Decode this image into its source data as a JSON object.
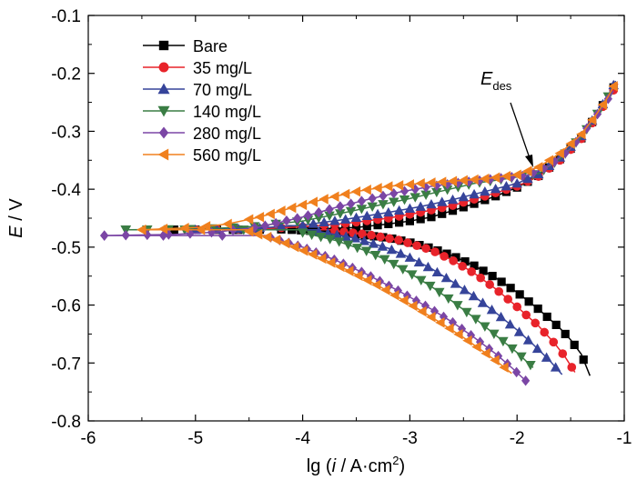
{
  "chart_data": {
    "type": "line",
    "xlabel": {
      "prefix": "lg (",
      "italic": "i",
      "mid": " / A·cm",
      "sup": "2",
      "suffix": ")"
    },
    "ylabel": {
      "italic": "E",
      "suffix": " / V"
    },
    "xlim": [
      -6,
      -1
    ],
    "ylim": [
      -0.8,
      -0.1
    ],
    "x_ticks": [
      "-6",
      "-5",
      "-4",
      "-3",
      "-2",
      "-1"
    ],
    "y_ticks": [
      "-0.8",
      "-0.7",
      "-0.6",
      "-0.5",
      "-0.4",
      "-0.3",
      "-0.2",
      "-0.1"
    ],
    "annotation": {
      "text_italic": "E",
      "sub": "des",
      "x": -1.78,
      "y": -0.373
    },
    "series": [
      {
        "name": "Bare",
        "color": "#000000",
        "marker": "square",
        "ecorr": -0.47,
        "x_left": -5.2,
        "x_cross": -4.1,
        "anodic": [
          [
            -5.2,
            -0.47
          ],
          [
            -4.5,
            -0.47
          ],
          [
            -4.1,
            -0.469
          ],
          [
            -3.8,
            -0.468
          ],
          [
            -3.5,
            -0.466
          ],
          [
            -3.2,
            -0.46
          ],
          [
            -3.0,
            -0.455
          ],
          [
            -2.8,
            -0.448
          ],
          [
            -2.6,
            -0.437
          ],
          [
            -2.4,
            -0.425
          ],
          [
            -2.2,
            -0.412
          ],
          [
            -2.0,
            -0.397
          ],
          [
            -1.8,
            -0.377
          ],
          [
            -1.6,
            -0.348
          ],
          [
            -1.4,
            -0.312
          ],
          [
            -1.25,
            -0.27
          ],
          [
            -1.15,
            -0.24
          ],
          [
            -1.08,
            -0.218
          ]
        ],
        "cathodic": [
          [
            -4.1,
            -0.47
          ],
          [
            -3.8,
            -0.473
          ],
          [
            -3.5,
            -0.478
          ],
          [
            -3.2,
            -0.484
          ],
          [
            -3.0,
            -0.492
          ],
          [
            -2.8,
            -0.502
          ],
          [
            -2.6,
            -0.515
          ],
          [
            -2.4,
            -0.532
          ],
          [
            -2.2,
            -0.553
          ],
          [
            -2.0,
            -0.578
          ],
          [
            -1.8,
            -0.607
          ],
          [
            -1.6,
            -0.64
          ],
          [
            -1.5,
            -0.66
          ],
          [
            -1.4,
            -0.685
          ],
          [
            -1.32,
            -0.722
          ]
        ]
      },
      {
        "name": "35 mg/L",
        "color": "#e8232a",
        "marker": "circle",
        "ecorr": -0.47,
        "x_left": -5.0,
        "x_cross": -3.7,
        "anodic": [
          [
            -5.0,
            -0.47
          ],
          [
            -4.5,
            -0.469
          ],
          [
            -4.0,
            -0.465
          ],
          [
            -3.6,
            -0.459
          ],
          [
            -3.2,
            -0.45
          ],
          [
            -2.9,
            -0.44
          ],
          [
            -2.6,
            -0.428
          ],
          [
            -2.3,
            -0.412
          ],
          [
            -2.0,
            -0.395
          ],
          [
            -1.8,
            -0.378
          ],
          [
            -1.6,
            -0.35
          ],
          [
            -1.4,
            -0.313
          ],
          [
            -1.25,
            -0.272
          ],
          [
            -1.15,
            -0.243
          ],
          [
            -1.06,
            -0.218
          ]
        ],
        "cathodic": [
          [
            -3.7,
            -0.472
          ],
          [
            -3.4,
            -0.478
          ],
          [
            -3.1,
            -0.488
          ],
          [
            -2.8,
            -0.505
          ],
          [
            -2.6,
            -0.523
          ],
          [
            -2.4,
            -0.545
          ],
          [
            -2.2,
            -0.572
          ],
          [
            -2.0,
            -0.603
          ],
          [
            -1.8,
            -0.636
          ],
          [
            -1.65,
            -0.666
          ],
          [
            -1.55,
            -0.69
          ],
          [
            -1.46,
            -0.716
          ]
        ]
      },
      {
        "name": "70 mg/L",
        "color": "#36449a",
        "marker": "triangle-up",
        "ecorr": -0.47,
        "x_left": -5.0,
        "x_cross": -3.85,
        "anodic": [
          [
            -5.0,
            -0.47
          ],
          [
            -4.5,
            -0.468
          ],
          [
            -4.0,
            -0.462
          ],
          [
            -3.6,
            -0.452
          ],
          [
            -3.2,
            -0.44
          ],
          [
            -2.9,
            -0.43
          ],
          [
            -2.6,
            -0.418
          ],
          [
            -2.3,
            -0.404
          ],
          [
            -2.0,
            -0.39
          ],
          [
            -1.8,
            -0.374
          ],
          [
            -1.6,
            -0.345
          ],
          [
            -1.4,
            -0.308
          ],
          [
            -1.25,
            -0.268
          ],
          [
            -1.15,
            -0.238
          ],
          [
            -1.08,
            -0.213
          ]
        ],
        "cathodic": [
          [
            -3.85,
            -0.473
          ],
          [
            -3.5,
            -0.485
          ],
          [
            -3.2,
            -0.502
          ],
          [
            -3.0,
            -0.518
          ],
          [
            -2.8,
            -0.537
          ],
          [
            -2.6,
            -0.56
          ],
          [
            -2.4,
            -0.585
          ],
          [
            -2.2,
            -0.613
          ],
          [
            -2.0,
            -0.643
          ],
          [
            -1.85,
            -0.668
          ],
          [
            -1.7,
            -0.695
          ],
          [
            -1.58,
            -0.72
          ]
        ]
      },
      {
        "name": "140 mg/L",
        "color": "#3a7d44",
        "marker": "triangle-down",
        "ecorr": -0.47,
        "x_left": -5.65,
        "x_cross": -4.0,
        "anodic": [
          [
            -5.65,
            -0.47
          ],
          [
            -5.0,
            -0.469
          ],
          [
            -4.5,
            -0.465
          ],
          [
            -4.0,
            -0.455
          ],
          [
            -3.6,
            -0.44
          ],
          [
            -3.3,
            -0.428
          ],
          [
            -3.0,
            -0.416
          ],
          [
            -2.7,
            -0.403
          ],
          [
            -2.4,
            -0.39
          ],
          [
            -2.1,
            -0.382
          ],
          [
            -1.8,
            -0.373
          ],
          [
            -1.6,
            -0.348
          ],
          [
            -1.4,
            -0.31
          ],
          [
            -1.25,
            -0.27
          ],
          [
            -1.15,
            -0.24
          ],
          [
            -1.08,
            -0.215
          ]
        ],
        "cathodic": [
          [
            -4.0,
            -0.475
          ],
          [
            -3.7,
            -0.488
          ],
          [
            -3.4,
            -0.507
          ],
          [
            -3.2,
            -0.524
          ],
          [
            -3.0,
            -0.545
          ],
          [
            -2.8,
            -0.568
          ],
          [
            -2.6,
            -0.594
          ],
          [
            -2.4,
            -0.622
          ],
          [
            -2.2,
            -0.652
          ],
          [
            -2.0,
            -0.682
          ],
          [
            -1.85,
            -0.708
          ]
        ]
      },
      {
        "name": "280 mg/L",
        "color": "#7b46a5",
        "marker": "diamond",
        "ecorr": -0.48,
        "x_left": -5.85,
        "x_cross": -4.3,
        "anodic": [
          [
            -5.85,
            -0.48
          ],
          [
            -5.2,
            -0.478
          ],
          [
            -4.8,
            -0.474
          ],
          [
            -4.4,
            -0.465
          ],
          [
            -4.0,
            -0.448
          ],
          [
            -3.7,
            -0.432
          ],
          [
            -3.4,
            -0.418
          ],
          [
            -3.1,
            -0.405
          ],
          [
            -2.8,
            -0.395
          ],
          [
            -2.5,
            -0.388
          ],
          [
            -2.2,
            -0.382
          ],
          [
            -1.9,
            -0.376
          ],
          [
            -1.7,
            -0.36
          ],
          [
            -1.5,
            -0.33
          ],
          [
            -1.35,
            -0.295
          ],
          [
            -1.2,
            -0.258
          ],
          [
            -1.1,
            -0.23
          ]
        ],
        "cathodic": [
          [
            -4.3,
            -0.483
          ],
          [
            -4.0,
            -0.5
          ],
          [
            -3.7,
            -0.522
          ],
          [
            -3.4,
            -0.547
          ],
          [
            -3.1,
            -0.576
          ],
          [
            -2.8,
            -0.607
          ],
          [
            -2.6,
            -0.63
          ],
          [
            -2.4,
            -0.656
          ],
          [
            -2.2,
            -0.684
          ],
          [
            -2.05,
            -0.708
          ],
          [
            -1.9,
            -0.734
          ]
        ]
      },
      {
        "name": "560 mg/L",
        "color": "#f0801e",
        "marker": "triangle-left",
        "ecorr": -0.47,
        "x_left": -5.5,
        "x_cross": -4.5,
        "anodic": [
          [
            -5.5,
            -0.47
          ],
          [
            -5.0,
            -0.466
          ],
          [
            -4.7,
            -0.46
          ],
          [
            -4.4,
            -0.448
          ],
          [
            -4.1,
            -0.432
          ],
          [
            -3.8,
            -0.417
          ],
          [
            -3.5,
            -0.404
          ],
          [
            -3.2,
            -0.395
          ],
          [
            -2.9,
            -0.39
          ],
          [
            -2.6,
            -0.386
          ],
          [
            -2.3,
            -0.382
          ],
          [
            -2.0,
            -0.375
          ],
          [
            -1.8,
            -0.362
          ],
          [
            -1.6,
            -0.338
          ],
          [
            -1.4,
            -0.305
          ],
          [
            -1.25,
            -0.268
          ],
          [
            -1.15,
            -0.24
          ],
          [
            -1.08,
            -0.215
          ]
        ],
        "cathodic": [
          [
            -4.5,
            -0.473
          ],
          [
            -4.2,
            -0.49
          ],
          [
            -3.9,
            -0.513
          ],
          [
            -3.6,
            -0.538
          ],
          [
            -3.3,
            -0.566
          ],
          [
            -3.0,
            -0.598
          ],
          [
            -2.7,
            -0.632
          ],
          [
            -2.5,
            -0.656
          ],
          [
            -2.3,
            -0.682
          ],
          [
            -2.15,
            -0.703
          ],
          [
            -2.05,
            -0.718
          ]
        ]
      }
    ]
  }
}
